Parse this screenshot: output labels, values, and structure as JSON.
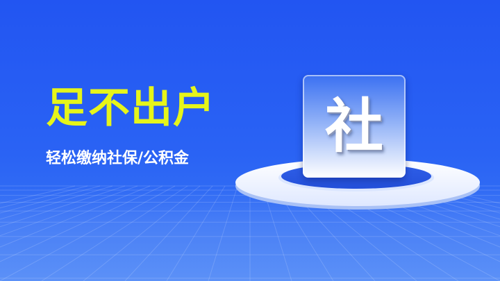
{
  "banner": {
    "headline": "足不出户",
    "subline": "轻松缴纳社保/公积金",
    "tile_char": "社"
  },
  "colors": {
    "background": "#2a63f4",
    "headline": "#e6f51a",
    "subline": "#ffffff"
  }
}
